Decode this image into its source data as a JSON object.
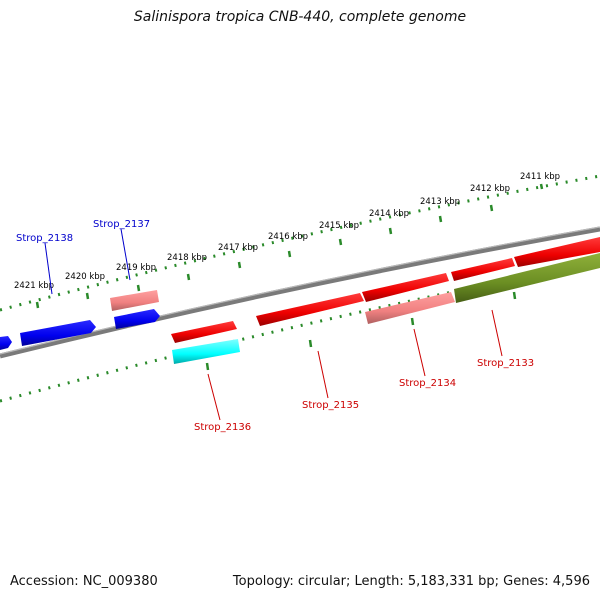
{
  "title": "Salinispora tropica CNB-440, complete genome",
  "footer": {
    "accession": "Accession: NC_009380",
    "stats": "Topology: circular; Length: 5,183,331 bp; Genes: 4,596"
  },
  "colors": {
    "backbone": "#808080",
    "ruler_dots": "#2a8a2a",
    "forward_gene": "#ff0000",
    "reverse_gene": "#0000ff",
    "pseudo_gene": "#f08080",
    "rna_gene": "#00ffff",
    "other_feature": "#6b8e23",
    "label_forward": "#cc0000",
    "label_reverse": "#0000cc"
  },
  "ruler_labels": [
    "2411 kbp",
    "2412 kbp",
    "2413 kbp",
    "2414 kbp",
    "2415 kbp",
    "2416 kbp",
    "2417 kbp",
    "2418 kbp",
    "2419 kbp",
    "2420 kbp",
    "2421 kbp"
  ],
  "gene_labels": {
    "strop_2138": "Strop_2138",
    "strop_2137": "Strop_2137",
    "strop_2136": "Strop_2136",
    "strop_2135": "Strop_2135",
    "strop_2134": "Strop_2134",
    "strop_2133": "Strop_2133"
  }
}
